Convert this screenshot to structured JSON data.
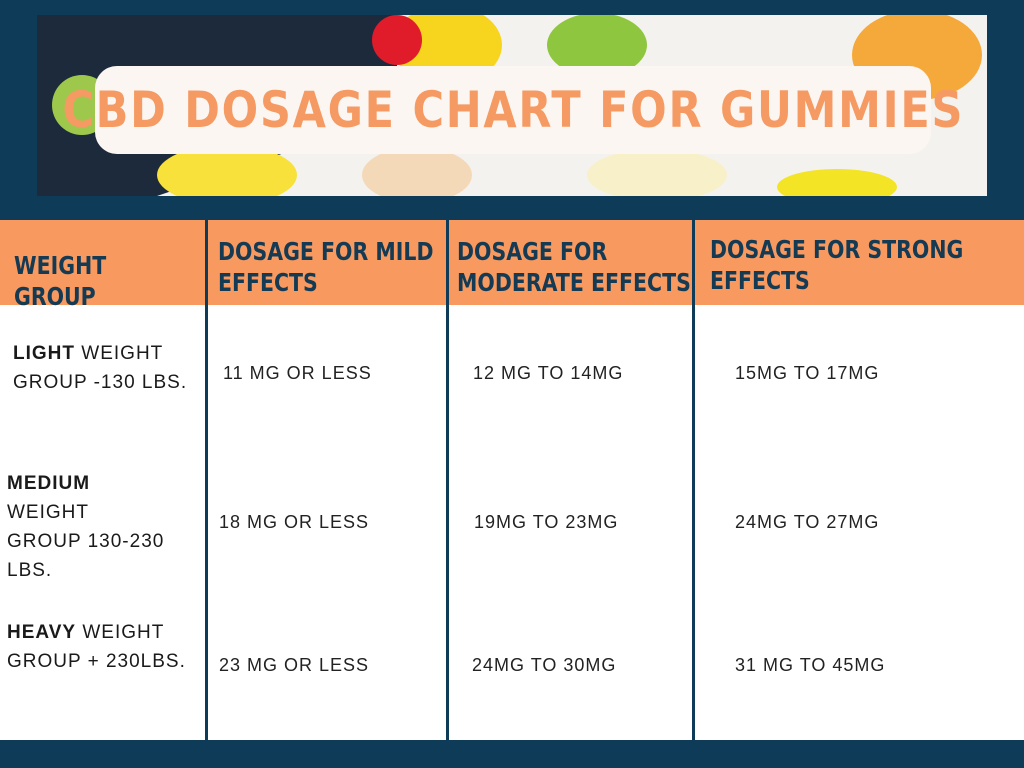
{
  "header": {
    "title": "CBD DOSAGE CHART FOR GUMMIES"
  },
  "table": {
    "columns": [
      "WEIGHT GROUP",
      "DOSAGE FOR MILD EFFECTS",
      "DOSAGE FOR MODERATE EFFECTS",
      "DOSAGE FOR STRONG EFFECTS"
    ],
    "rows": [
      {
        "group_bold": "LIGHT",
        "group_rest": " WEIGHT GROUP -130 LBS.",
        "cells": [
          "11 MG OR LESS",
          "12 MG TO 14MG",
          "15MG TO 17MG"
        ]
      },
      {
        "group_bold": "MEDIUM",
        "group_rest": " WEIGHT GROUP 130-230 LBS.",
        "cells": [
          "18 MG OR LESS",
          "19MG TO 23MG",
          "24MG TO 27MG"
        ]
      },
      {
        "group_bold": "HEAVY",
        "group_rest": " WEIGHT GROUP + 230LBS.",
        "cells": [
          "23 MG OR LESS",
          "24MG TO 30MG",
          "31 MG TO 45MG"
        ]
      }
    ]
  }
}
